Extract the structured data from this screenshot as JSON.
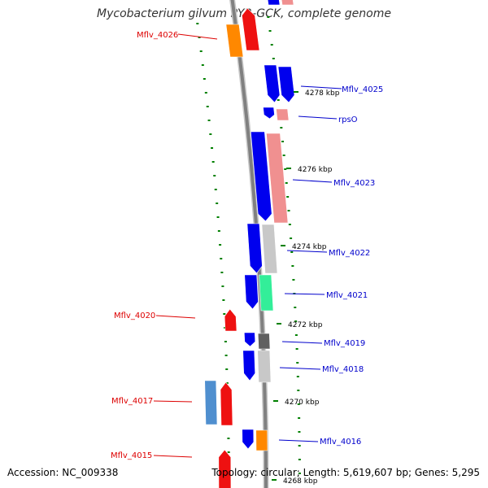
{
  "title": "Mycobacterium gilvum PYR-GCK, complete genome",
  "accession": "Accession: NC_009338",
  "summary": "Topology: circular; Length: 5,619,607 bp; Genes: 5,295",
  "colors": {
    "red_label": "#dd0000",
    "blue_label": "#0000cc",
    "backbone": "#808080",
    "tick": "#008000"
  },
  "ruler_labels": [
    {
      "text": "4278 kbp"
    },
    {
      "text": "4276 kbp"
    },
    {
      "text": "4274 kbp"
    },
    {
      "text": "4272 kbp"
    },
    {
      "text": "4270 kbp"
    },
    {
      "text": "4268 kbp"
    }
  ],
  "gene_labels": [
    {
      "text": "Mflv_4026",
      "color": "red"
    },
    {
      "text": "Mflv_4025",
      "color": "blue"
    },
    {
      "text": "rpsO",
      "color": "blue"
    },
    {
      "text": "Mflv_4023",
      "color": "blue"
    },
    {
      "text": "Mflv_4022",
      "color": "blue"
    },
    {
      "text": "Mflv_4021",
      "color": "blue"
    },
    {
      "text": "Mflv_4020",
      "color": "red"
    },
    {
      "text": "Mflv_4019",
      "color": "blue"
    },
    {
      "text": "Mflv_4018",
      "color": "blue"
    },
    {
      "text": "Mflv_4017",
      "color": "red"
    },
    {
      "text": "Mflv_4016",
      "color": "blue"
    },
    {
      "text": "Mflv_4015",
      "color": "red"
    }
  ]
}
